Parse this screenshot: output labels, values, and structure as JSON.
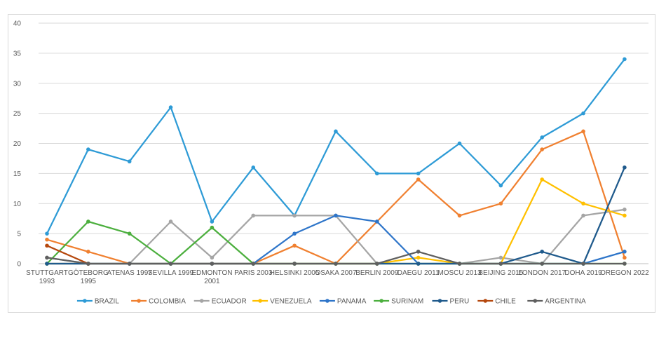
{
  "chart_data": {
    "type": "line",
    "title": "",
    "xlabel": "",
    "ylabel": "",
    "ylim": [
      0,
      40
    ],
    "yticks": [
      0,
      5,
      10,
      15,
      20,
      25,
      30,
      35,
      40
    ],
    "grid": "horizontal",
    "legend_position": "bottom",
    "categories": [
      "STUTTGART 1993",
      "GÖTEBORG 1995",
      "ATENAS 1997",
      "SEVILLA 1999",
      "EDMONTON 2001",
      "PARIS 2003",
      "HELSINKI 2005",
      "OSAKA 2007",
      "BERLIN 2009",
      "DAEGU 2011",
      "MOSCU 2013",
      "BEIJING 2015",
      "LONDON 2017",
      "DOHA 2019",
      "OREGON 2022"
    ],
    "category_lines": [
      [
        "STUTTGART",
        "1993"
      ],
      [
        "GÖTEBORG",
        "1995"
      ],
      [
        "ATENAS 1997"
      ],
      [
        "SEVILLA 1999"
      ],
      [
        "EDMONTON",
        "2001"
      ],
      [
        "PARIS 2003"
      ],
      [
        "HELSINKI 2005"
      ],
      [
        "OSAKA 2007"
      ],
      [
        "BERLIN 2009"
      ],
      [
        "DAEGU 2011"
      ],
      [
        "MOSCU 2013"
      ],
      [
        "BEIJING 2015"
      ],
      [
        "LONDON 2017"
      ],
      [
        "DOHA 2019"
      ],
      [
        "OREGON 2022"
      ]
    ],
    "series": [
      {
        "name": "BRAZIL",
        "color": "#2E9BD6",
        "values": [
          5,
          19,
          17,
          26,
          7,
          16,
          8,
          22,
          15,
          15,
          20,
          13,
          21,
          25,
          34
        ]
      },
      {
        "name": "COLOMBIA",
        "color": "#F08030",
        "values": [
          4,
          2,
          0,
          0,
          0,
          0,
          3,
          0,
          7,
          14,
          8,
          10,
          19,
          22,
          1
        ]
      },
      {
        "name": "ECUADOR",
        "color": "#A5A5A5",
        "values": [
          1,
          0,
          0,
          7,
          1,
          8,
          8,
          8,
          0,
          0,
          0,
          1,
          0,
          8,
          9
        ]
      },
      {
        "name": "VENEZUELA",
        "color": "#FFC000",
        "values": [
          0,
          0,
          0,
          0,
          0,
          0,
          0,
          0,
          0,
          1,
          0,
          0,
          14,
          10,
          8
        ]
      },
      {
        "name": "PANAMA",
        "color": "#2E75C9",
        "values": [
          0,
          0,
          0,
          0,
          0,
          0,
          5,
          8,
          7,
          0,
          0,
          0,
          0,
          0,
          2
        ]
      },
      {
        "name": "SURINAM",
        "color": "#4CAF3E",
        "values": [
          0,
          7,
          5,
          0,
          6,
          0,
          0,
          0,
          0,
          0,
          0,
          0,
          0,
          0,
          0
        ]
      },
      {
        "name": "PERU",
        "color": "#1F5A8C",
        "values": [
          0,
          0,
          0,
          0,
          0,
          0,
          0,
          0,
          0,
          0,
          0,
          0,
          2,
          0,
          16
        ]
      },
      {
        "name": "CHILE",
        "color": "#B5480E",
        "values": [
          3,
          0,
          null,
          null,
          null,
          null,
          null,
          null,
          null,
          null,
          null,
          null,
          null,
          null,
          null
        ]
      },
      {
        "name": "ARGENTINA",
        "color": "#5F5F5F",
        "values": [
          1,
          0,
          0,
          0,
          0,
          0,
          0,
          0,
          0,
          2,
          0,
          0,
          0,
          0,
          0
        ]
      }
    ]
  }
}
